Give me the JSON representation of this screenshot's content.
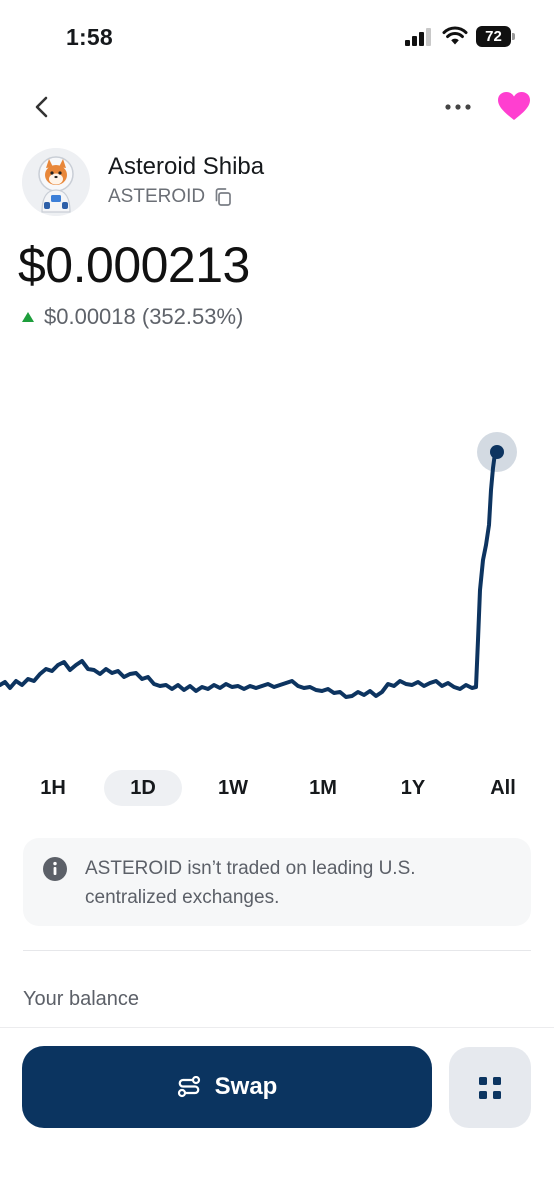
{
  "status_bar": {
    "time": "1:58",
    "battery": "72"
  },
  "token": {
    "name": "Asteroid Shiba",
    "symbol": "ASTEROID",
    "price": "$0.000213",
    "change": "$0.00018 (352.53%)",
    "change_direction": "up",
    "accent_color": "#0b3460",
    "favorite_color": "#ff3fd0",
    "change_color": "#1e9e3c"
  },
  "time_ranges": [
    {
      "label": "1H",
      "active": false
    },
    {
      "label": "1D",
      "active": true
    },
    {
      "label": "1W",
      "active": false
    },
    {
      "label": "1M",
      "active": false
    },
    {
      "label": "1Y",
      "active": false
    },
    {
      "label": "All",
      "active": false
    }
  ],
  "notice": {
    "icon": "info-icon",
    "text": "ASTEROID isn’t traded on leading U.S. centralized exchanges."
  },
  "balance": {
    "label": "Your balance"
  },
  "actions": {
    "swap_label": "Swap",
    "swap_icon": "swap-icon",
    "apps_icon": "grid-icon"
  },
  "icons": {
    "back": "chevron-left-icon",
    "more": "more-icon",
    "favorite": "heart-icon",
    "copy": "copy-icon"
  }
}
